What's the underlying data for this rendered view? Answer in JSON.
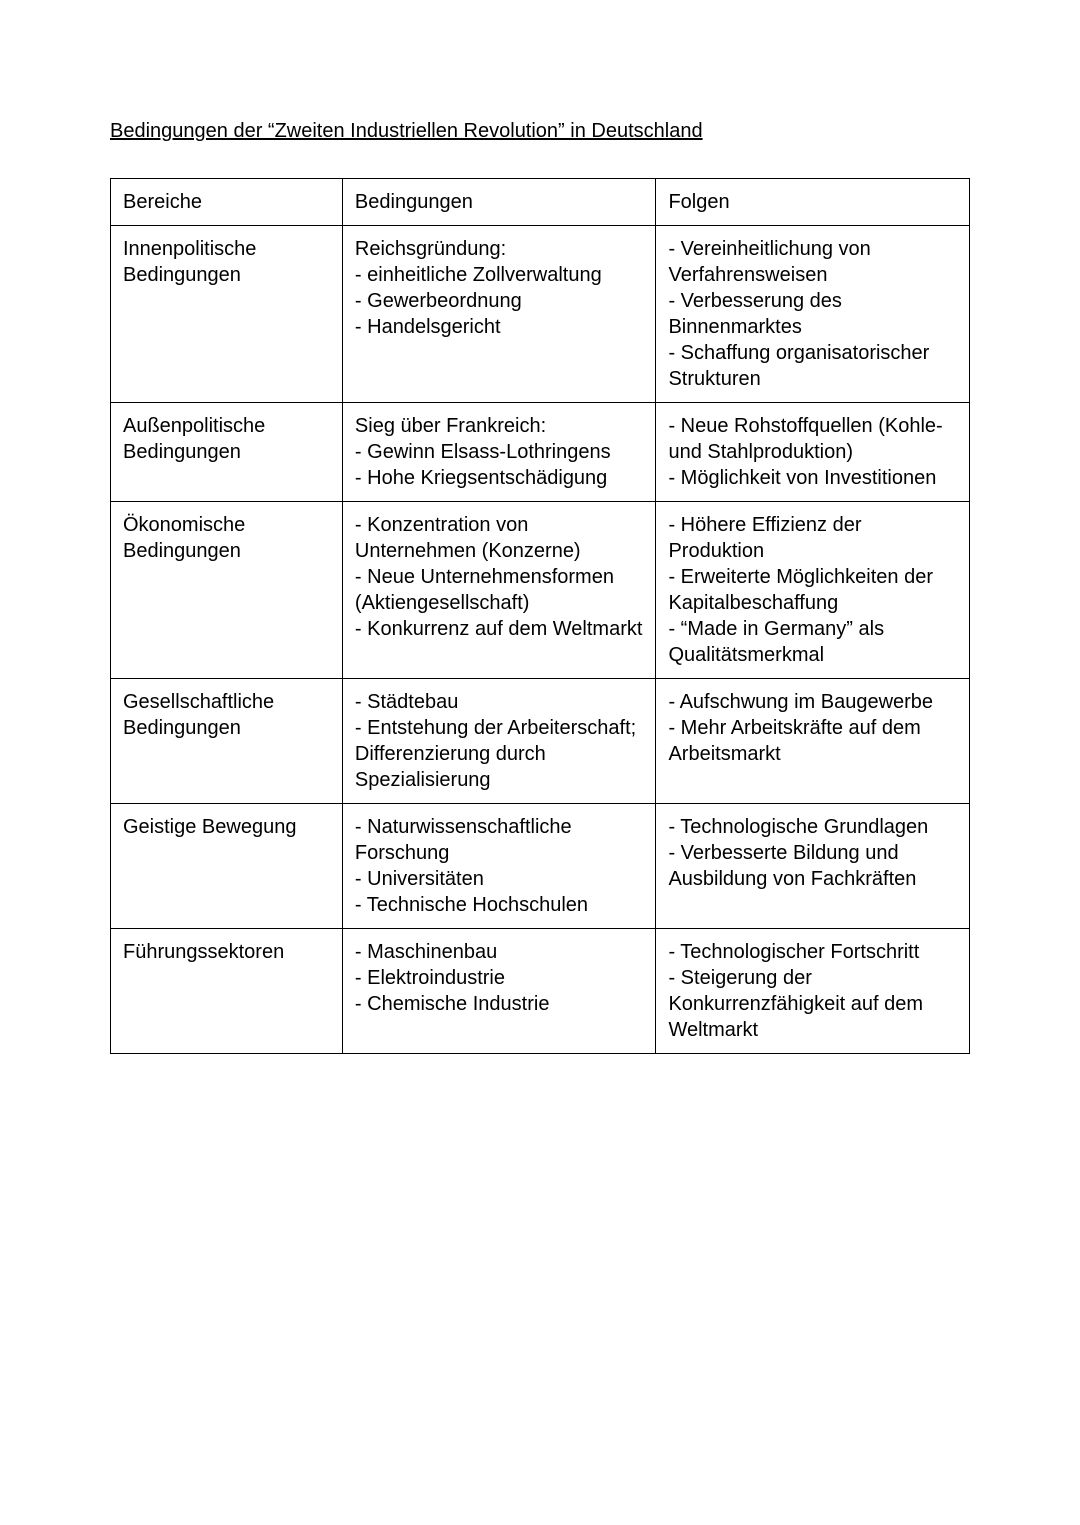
{
  "document": {
    "title": "Bedingungen der “Zweiten Industriellen Revolution” in Deutschland",
    "background_color": "#ffffff",
    "text_color": "#000000",
    "border_color": "#000000",
    "font_family": "Arial",
    "title_fontsize": 20,
    "cell_fontsize": 20,
    "table": {
      "columns": [
        "Bereiche",
        "Bedingungen",
        "Folgen"
      ],
      "column_widths": [
        "27%",
        "36.5%",
        "36.5%"
      ],
      "rows": [
        {
          "bereiche": "Innenpolitische Bedingungen",
          "bedingungen": "Reichsgründung:\n- einheitliche Zollverwaltung\n- Gewerbeordnung\n- Handelsgericht",
          "folgen": "- Vereinheitlichung von Verfahrensweisen\n- Verbesserung des Binnenmarktes\n- Schaffung organisatorischer Strukturen"
        },
        {
          "bereiche": "Außenpolitische Bedingungen",
          "bedingungen": "Sieg über Frankreich:\n- Gewinn Elsass-Lothringens\n- Hohe Kriegsentschädigung",
          "folgen": "- Neue Rohstoffquellen (Kohle- und Stahlproduktion)\n- Möglichkeit von Investitionen"
        },
        {
          "bereiche": "Ökonomische Bedingungen",
          "bedingungen": "- Konzentration von Unternehmen (Konzerne)\n- Neue Unternehmensformen (Aktiengesellschaft)\n- Konkurrenz auf dem Weltmarkt",
          "folgen": "- Höhere Effizienz der Produktion\n- Erweiterte Möglichkeiten der Kapitalbeschaffung\n- “Made in Germany” als Qualitätsmerkmal"
        },
        {
          "bereiche": "Gesellschaftliche Bedingungen",
          "bedingungen": "- Städtebau\n- Entstehung der Arbeiterschaft; Differenzierung durch Spezialisierung",
          "folgen": "- Aufschwung im Baugewerbe\n- Mehr Arbeitskräfte auf dem Arbeitsmarkt"
        },
        {
          "bereiche": "Geistige Bewegung",
          "bedingungen": "- Naturwissenschaftliche Forschung\n- Universitäten\n- Technische Hochschulen",
          "folgen": "- Technologische Grundlagen\n- Verbesserte Bildung und Ausbildung von Fachkräften"
        },
        {
          "bereiche": "Führungssektoren",
          "bedingungen": "- Maschinenbau\n- Elektroindustrie\n- Chemische Industrie",
          "folgen": "- Technologischer Fortschritt\n- Steigerung der Konkurrenzfähigkeit auf dem Weltmarkt"
        }
      ]
    }
  }
}
